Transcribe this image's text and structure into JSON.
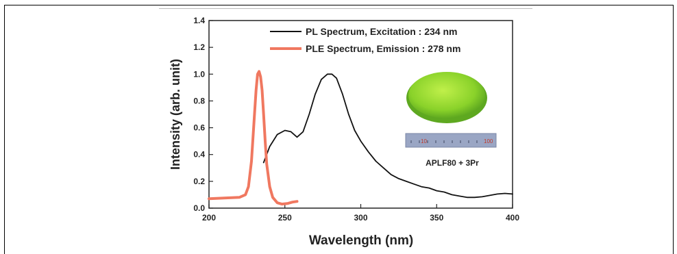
{
  "chart_data": {
    "type": "line",
    "xlabel": "Wavelength (nm)",
    "ylabel": "Intensity (arb. unit)",
    "xlim": [
      200,
      400
    ],
    "ylim": [
      0.0,
      1.4
    ],
    "xticks": [
      "200",
      "250",
      "300",
      "350",
      "400"
    ],
    "yticks": [
      "0.0",
      "0.2",
      "0.4",
      "0.6",
      "0.8",
      "1.0",
      "1.2",
      "1.4"
    ],
    "grid": false,
    "legend_position": "top-right",
    "series": [
      {
        "name": "PL Spectrum, Excitation : 234 nm",
        "color": "#111111",
        "x": [
          236,
          240,
          245,
          250,
          254,
          258,
          262,
          266,
          270,
          274,
          278,
          281,
          284,
          288,
          292,
          296,
          300,
          305,
          310,
          315,
          320,
          325,
          330,
          335,
          340,
          345,
          350,
          355,
          360,
          365,
          370,
          375,
          380,
          385,
          390,
          395,
          400
        ],
        "y": [
          0.34,
          0.46,
          0.55,
          0.58,
          0.57,
          0.53,
          0.57,
          0.7,
          0.85,
          0.96,
          1.0,
          1.0,
          0.97,
          0.85,
          0.7,
          0.58,
          0.5,
          0.42,
          0.35,
          0.3,
          0.25,
          0.22,
          0.2,
          0.18,
          0.16,
          0.15,
          0.13,
          0.12,
          0.1,
          0.09,
          0.08,
          0.08,
          0.085,
          0.095,
          0.105,
          0.11,
          0.105
        ]
      },
      {
        "name": "PLE Spectrum, Emission : 278 nm",
        "color": "#f07860",
        "x": [
          200,
          210,
          220,
          224,
          226,
          228,
          230,
          231,
          232,
          233,
          234,
          235,
          236,
          237,
          238,
          240,
          242,
          245,
          248,
          252,
          255,
          258
        ],
        "y": [
          0.07,
          0.075,
          0.08,
          0.1,
          0.16,
          0.35,
          0.7,
          0.88,
          1.0,
          1.02,
          0.98,
          0.88,
          0.7,
          0.5,
          0.33,
          0.16,
          0.08,
          0.04,
          0.03,
          0.035,
          0.045,
          0.05
        ]
      }
    ]
  },
  "inset": {
    "caption": "APLF80 + 3Pr",
    "ruler_labels": [
      "10",
      "100"
    ],
    "disk_color": "#8ad22a",
    "ruler_color": "#9aa6c4"
  }
}
